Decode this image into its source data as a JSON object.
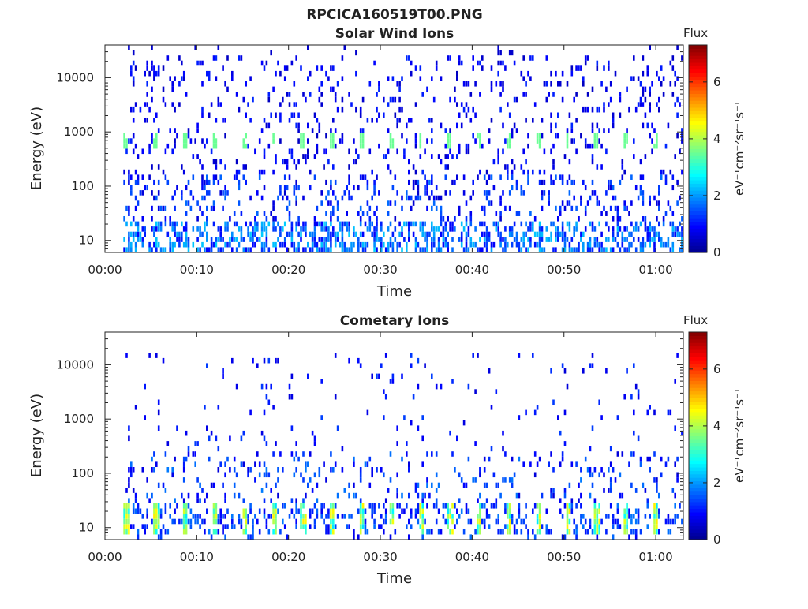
{
  "figure": {
    "title": "RPCICA160519T00.PNG"
  },
  "colors": {
    "colormap": [
      "#00008f",
      "#0000ff",
      "#0080ff",
      "#00ffff",
      "#80ff80",
      "#ffff00",
      "#ff8000",
      "#ff0000",
      "#800000"
    ],
    "axis": "#222222",
    "background": "#ffffff"
  },
  "chart_data": [
    {
      "type": "heatmap",
      "title": "Solar Wind Ions",
      "xlabel": "Time",
      "ylabel": "Energy (eV)",
      "x_unit": "hh:mm",
      "xlim": [
        "00:00",
        "01:03"
      ],
      "ylim": [
        6,
        40000
      ],
      "y_scale": "log",
      "x_ticks": [
        "00:00",
        "00:10",
        "00:20",
        "00:30",
        "00:40",
        "00:50",
        "01:00"
      ],
      "y_ticks": [
        "10",
        "100",
        "1000",
        "10000"
      ],
      "colorbar": {
        "label": "eV⁻¹cm⁻²sr⁻¹s⁻¹",
        "title": "Flux",
        "range": [
          0,
          7.3
        ],
        "ticks": [
          "0",
          "2",
          "4",
          "6"
        ]
      },
      "features": {
        "periodic_band_energy_eV": 650,
        "periodic_band_period_min": 3.2,
        "periodic_band_flux": 3.5,
        "low_energy_band_eV": [
          6,
          25
        ],
        "data_start": "00:02"
      }
    },
    {
      "type": "heatmap",
      "title": "Cometary Ions",
      "xlabel": "Time",
      "ylabel": "Energy (eV)",
      "x_unit": "hh:mm",
      "xlim": [
        "00:00",
        "01:03"
      ],
      "ylim": [
        6,
        40000
      ],
      "y_scale": "log",
      "x_ticks": [
        "00:00",
        "00:10",
        "00:20",
        "00:30",
        "00:40",
        "00:50",
        "01:00"
      ],
      "y_ticks": [
        "10",
        "100",
        "1000",
        "10000"
      ],
      "colorbar": {
        "label": "eV⁻¹cm⁻²sr⁻¹s⁻¹",
        "title": "Flux",
        "range": [
          0,
          7.3
        ],
        "ticks": [
          "0",
          "2",
          "4",
          "6"
        ]
      },
      "features": {
        "low_energy_burst_eV": [
          8,
          30
        ],
        "low_energy_burst_period_min": 3.2,
        "low_energy_burst_flux": 4.2,
        "data_start": "00:02"
      }
    }
  ]
}
